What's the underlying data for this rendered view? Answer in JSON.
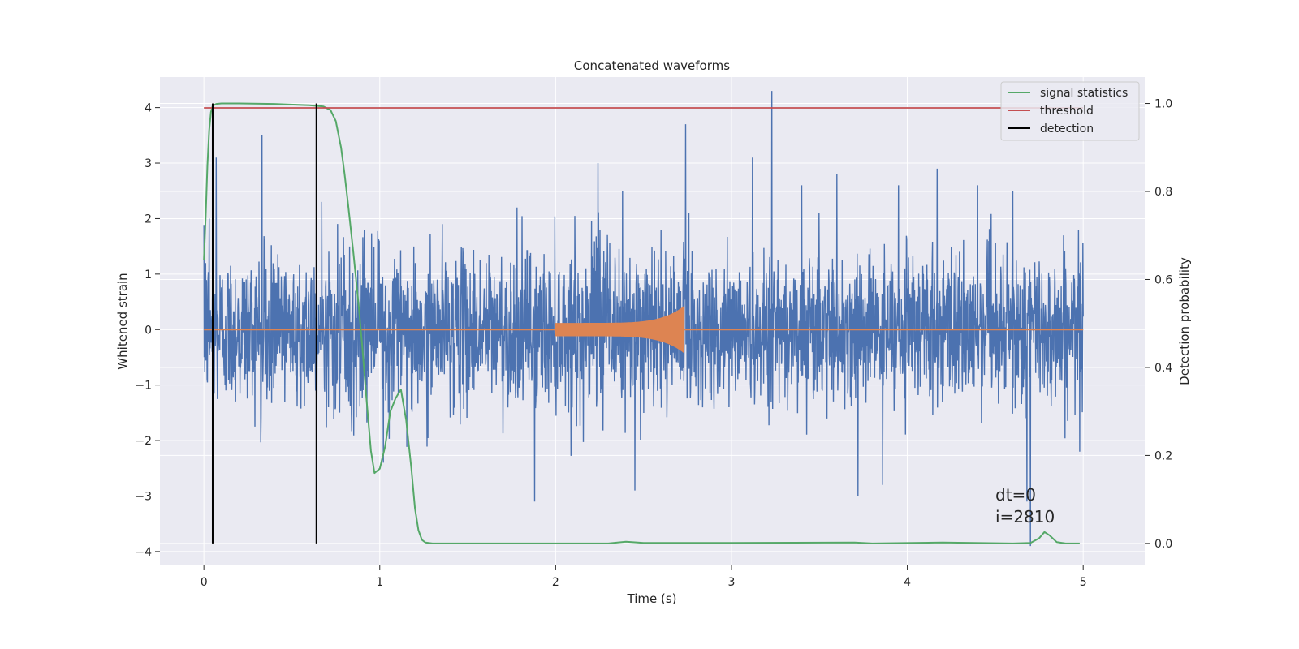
{
  "chart_data": {
    "type": "line",
    "title": "Concatenated waveforms",
    "xlabel": "Time (s)",
    "ylabel": "Whitened strain",
    "y2label": "Detection probability",
    "xlim": [
      -0.25,
      5.35
    ],
    "ylim": [
      -4.25,
      4.55
    ],
    "y2lim": [
      -0.05,
      1.06
    ],
    "xticks": [
      0,
      1,
      2,
      3,
      4,
      5
    ],
    "yticks": [
      -4,
      -3,
      -2,
      -1,
      0,
      1,
      2,
      3,
      4
    ],
    "y2ticks": [
      0.0,
      0.2,
      0.4,
      0.6,
      0.8,
      1.0
    ],
    "xtick_labels": [
      "0",
      "1",
      "2",
      "3",
      "4",
      "5"
    ],
    "ytick_labels": [
      "−4",
      "−3",
      "−2",
      "−1",
      "0",
      "1",
      "2",
      "3",
      "4"
    ],
    "y2tick_labels": [
      "0.0",
      "0.2",
      "0.4",
      "0.6",
      "0.8",
      "1.0"
    ],
    "grid": true,
    "legend_position": "top-right",
    "colors": {
      "background": "#EAEAF2",
      "grid": "#FFFFFF",
      "strain": "#4C72B0",
      "injection": "#DD8452",
      "signal": "#55A868",
      "threshold": "#C44E52",
      "detection": "#000000"
    },
    "series": [
      {
        "name": "signal statistics",
        "axis": "right",
        "x": [
          0.0,
          0.01,
          0.02,
          0.03,
          0.04,
          0.05,
          0.07,
          0.1,
          0.2,
          0.4,
          0.6,
          0.68,
          0.72,
          0.75,
          0.78,
          0.8,
          0.82,
          0.85,
          0.88,
          0.9,
          0.92,
          0.95,
          0.97,
          1.0,
          1.03,
          1.06,
          1.09,
          1.12,
          1.15,
          1.18,
          1.2,
          1.22,
          1.24,
          1.26,
          1.3,
          1.5,
          2.0,
          2.3,
          2.4,
          2.5,
          3.0,
          3.7,
          3.8,
          4.2,
          4.6,
          4.7,
          4.75,
          4.78,
          4.81,
          4.85,
          4.9,
          4.98
        ],
        "y": [
          0.645,
          0.74,
          0.86,
          0.94,
          0.98,
          0.995,
          0.999,
          1.0,
          1.0,
          0.999,
          0.996,
          0.993,
          0.985,
          0.96,
          0.9,
          0.84,
          0.77,
          0.66,
          0.54,
          0.45,
          0.35,
          0.21,
          0.16,
          0.17,
          0.22,
          0.3,
          0.33,
          0.35,
          0.28,
          0.17,
          0.08,
          0.03,
          0.008,
          0.002,
          0.0,
          0.0,
          0.0,
          0.0,
          0.004,
          0.001,
          0.001,
          0.002,
          0.0,
          0.002,
          0.0,
          0.001,
          0.012,
          0.026,
          0.018,
          0.003,
          0.0,
          0.0
        ]
      },
      {
        "name": "threshold",
        "axis": "right",
        "x": [
          0.0,
          5.0
        ],
        "y": [
          0.99,
          0.99
        ]
      },
      {
        "name": "detection",
        "axis": "right",
        "vlines": [
          0.05,
          0.64
        ],
        "ymin": 0.0,
        "ymax": 1.0
      },
      {
        "name": "",
        "axis": "left",
        "kind": "whitened noise",
        "x": [
          0.0,
          5.0
        ],
        "noise_std": 0.68,
        "spikes": [
          [
            0.01,
            1.2
          ],
          [
            0.03,
            2.0
          ],
          [
            0.07,
            3.1
          ],
          [
            0.33,
            3.5
          ],
          [
            0.67,
            2.3
          ],
          [
            1.02,
            -2.4
          ],
          [
            1.78,
            2.2
          ],
          [
            1.88,
            -3.1
          ],
          [
            2.24,
            3.0
          ],
          [
            2.38,
            2.5
          ],
          [
            2.45,
            -2.9
          ],
          [
            2.6,
            1.8
          ],
          [
            2.74,
            3.7
          ],
          [
            3.12,
            3.1
          ],
          [
            3.23,
            4.3
          ],
          [
            3.4,
            2.6
          ],
          [
            3.6,
            2.8
          ],
          [
            3.72,
            -3.0
          ],
          [
            3.86,
            -2.8
          ],
          [
            3.95,
            2.6
          ],
          [
            4.17,
            2.9
          ],
          [
            4.4,
            2.6
          ],
          [
            4.6,
            2.5
          ],
          [
            4.68,
            -3.1
          ],
          [
            4.7,
            -3.9
          ],
          [
            4.98,
            -2.2
          ]
        ]
      },
      {
        "name": "",
        "axis": "left",
        "kind": "injection chirp",
        "x": [
          2.0,
          2.73
        ],
        "amplitude_start": 0.12,
        "amplitude_peak": 0.42
      }
    ],
    "annotations": [
      "dt=0",
      "i=2810"
    ]
  }
}
